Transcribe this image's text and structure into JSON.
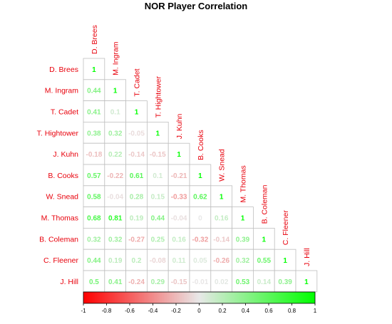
{
  "chart_data": {
    "type": "heatmap",
    "title": "NOR Player Correlation",
    "players": [
      "D. Brees",
      "M. Ingram",
      "T. Cadet",
      "T. Hightower",
      "J. Kuhn",
      "B. Cooks",
      "W. Snead",
      "M. Thomas",
      "B. Coleman",
      "C. Fleener",
      "J. Hill"
    ],
    "matrix_lower": [
      [
        1
      ],
      [
        0.44,
        1
      ],
      [
        0.41,
        0.1,
        1
      ],
      [
        0.38,
        0.32,
        -0.05,
        1
      ],
      [
        -0.18,
        0.22,
        -0.14,
        -0.15,
        1
      ],
      [
        0.57,
        -0.22,
        0.61,
        0.1,
        -0.21,
        1
      ],
      [
        0.58,
        -0.04,
        0.28,
        0.15,
        -0.33,
        0.62,
        1
      ],
      [
        0.68,
        0.81,
        0.19,
        0.44,
        -0.04,
        0,
        0.16,
        1
      ],
      [
        0.32,
        0.32,
        -0.27,
        0.25,
        0.16,
        -0.32,
        -0.14,
        0.39,
        1
      ],
      [
        0.44,
        0.19,
        0.2,
        -0.08,
        0.11,
        0.05,
        -0.26,
        0.32,
        0.55,
        1
      ],
      [
        0.5,
        0.41,
        -0.24,
        0.29,
        -0.15,
        -0.01,
        0.02,
        0.53,
        0.14,
        0.39,
        1
      ]
    ],
    "value_labels": [
      [
        "1"
      ],
      [
        "0.44",
        "1"
      ],
      [
        "0.41",
        "0.1",
        "1"
      ],
      [
        "0.38",
        "0.32",
        "-0.05",
        "1"
      ],
      [
        "-0.18",
        "0.22",
        "-0.14",
        "-0.15",
        "1"
      ],
      [
        "0.57",
        "-0.22",
        "0.61",
        "0.1",
        "-0.21",
        "1"
      ],
      [
        "0.58",
        "-0.04",
        "0.28",
        "0.15",
        "-0.33",
        "0.62",
        "1"
      ],
      [
        "0.68",
        "0.81",
        "0.19",
        "0.44",
        "-0.04",
        "0",
        "0.16",
        "1"
      ],
      [
        "0.32",
        "0.32",
        "-0.27",
        "0.25",
        "0.16",
        "-0.32",
        "-0.14",
        "0.39",
        "1"
      ],
      [
        "0.44",
        "0.19",
        "0.2",
        "-0.08",
        "0.11",
        "0.05",
        "-0.26",
        "0.32",
        "0.55",
        "1"
      ],
      [
        "0.5",
        "0.41",
        "-0.24",
        "0.29",
        "-0.15",
        "-0.01",
        "0.02",
        "0.53",
        "0.14",
        "0.39",
        "1"
      ]
    ],
    "colorbar": {
      "range": [
        -1,
        1
      ],
      "ticks": [
        -1,
        -0.8,
        -0.6,
        -0.4,
        -0.2,
        0,
        0.2,
        0.4,
        0.6,
        0.8,
        1
      ],
      "tick_labels": [
        "-1",
        "-0.8",
        "-0.6",
        "-0.4",
        "-0.2",
        "0",
        "0.2",
        "0.4",
        "0.6",
        "0.8",
        "1"
      ]
    },
    "colors": {
      "negative": "#ff0000",
      "neutral": "#e8e8e8",
      "positive": "#00ff00",
      "player_label": "#e8000b",
      "grid": "#bfbfbf",
      "title": "#000000"
    },
    "legend_placement": "bottom"
  }
}
